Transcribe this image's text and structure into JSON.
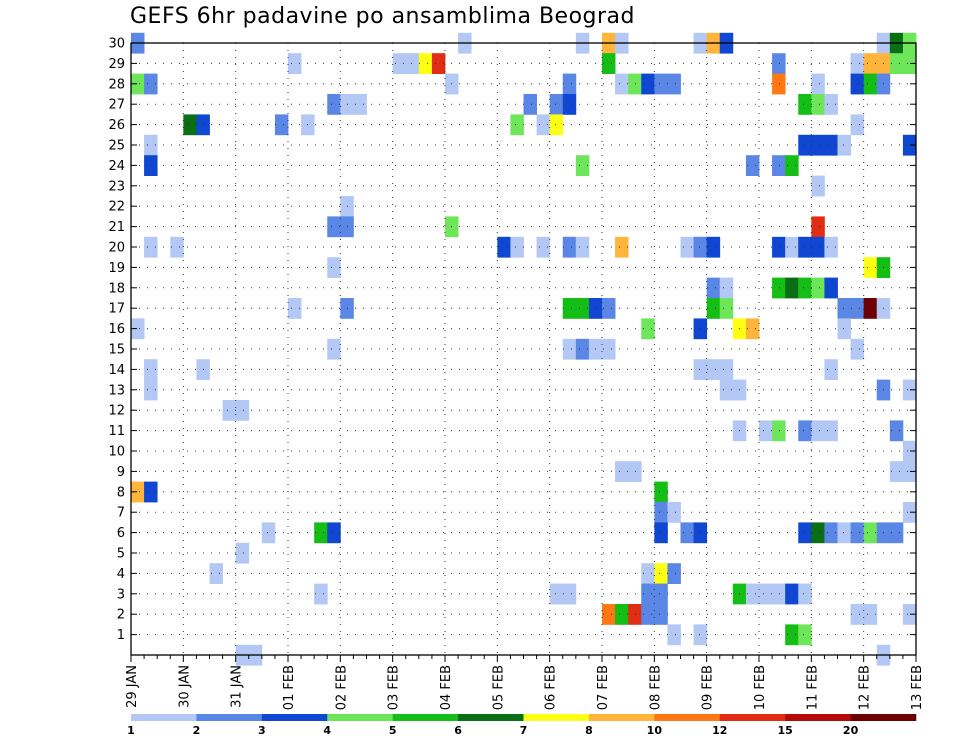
{
  "chart_data": {
    "type": "heatmap",
    "title": "GEFS 6hr padavine po ansamblima Beograd",
    "xlabel": "",
    "ylabel": "",
    "x_ticks": [
      "29 JAN",
      "30 JAN",
      "31 JAN",
      "01 FEB",
      "02 FEB",
      "03 FEB",
      "04 FEB",
      "05 FEB",
      "06 FEB",
      "07 FEB",
      "08 FEB",
      "09 FEB",
      "10 FEB",
      "11 FEB",
      "12 FEB",
      "13 FEB"
    ],
    "y_range": [
      0,
      30
    ],
    "y_ticks": [
      1,
      2,
      3,
      4,
      5,
      6,
      7,
      8,
      9,
      10,
      11,
      12,
      13,
      14,
      15,
      16,
      17,
      18,
      19,
      20,
      21,
      22,
      23,
      24,
      25,
      26,
      27,
      28,
      29,
      30
    ],
    "n_time_steps": 60,
    "grid": "dotted",
    "colorbar": {
      "labels": [
        "1",
        "2",
        "3",
        "4",
        "5",
        "6",
        "7",
        "8",
        "10",
        "12",
        "15",
        "20"
      ],
      "colors": [
        "#b4c8f5",
        "#5a87e6",
        "#0f46d2",
        "#6ee65a",
        "#14be14",
        "#0a6e14",
        "#ffff14",
        "#ffb43c",
        "#ff7814",
        "#e12d14",
        "#b40a0a",
        "#6e0000"
      ]
    },
    "cells": [
      [
        1,
        30,
        2
      ],
      [
        26,
        30,
        1
      ],
      [
        35,
        30,
        1
      ],
      [
        37,
        30,
        8
      ],
      [
        38,
        30,
        1
      ],
      [
        44,
        30,
        1
      ],
      [
        45,
        30,
        8
      ],
      [
        46,
        30,
        3
      ],
      [
        58,
        30,
        1
      ],
      [
        59,
        30,
        6
      ],
      [
        60,
        30,
        4
      ],
      [
        13,
        29,
        1
      ],
      [
        21,
        29,
        1
      ],
      [
        22,
        29,
        1
      ],
      [
        23,
        29,
        7
      ],
      [
        24,
        29,
        10
      ],
      [
        37,
        29,
        5
      ],
      [
        50,
        29,
        2
      ],
      [
        56,
        29,
        1
      ],
      [
        57,
        29,
        8
      ],
      [
        58,
        29,
        8
      ],
      [
        59,
        29,
        4
      ],
      [
        60,
        29,
        4
      ],
      [
        1,
        28,
        4
      ],
      [
        2,
        28,
        2
      ],
      [
        25,
        28,
        1
      ],
      [
        34,
        28,
        2
      ],
      [
        38,
        28,
        1
      ],
      [
        39,
        28,
        4
      ],
      [
        40,
        28,
        3
      ],
      [
        41,
        28,
        2
      ],
      [
        42,
        28,
        2
      ],
      [
        50,
        28,
        9
      ],
      [
        53,
        28,
        1
      ],
      [
        56,
        28,
        3
      ],
      [
        57,
        28,
        5
      ],
      [
        58,
        28,
        2
      ],
      [
        16,
        27,
        2
      ],
      [
        17,
        27,
        1
      ],
      [
        18,
        27,
        1
      ],
      [
        31,
        27,
        2
      ],
      [
        33,
        27,
        2
      ],
      [
        34,
        27,
        3
      ],
      [
        52,
        27,
        5
      ],
      [
        53,
        27,
        4
      ],
      [
        54,
        27,
        1
      ],
      [
        5,
        26,
        6
      ],
      [
        6,
        26,
        3
      ],
      [
        12,
        26,
        2
      ],
      [
        14,
        26,
        1
      ],
      [
        30,
        26,
        4
      ],
      [
        32,
        26,
        1
      ],
      [
        33,
        26,
        7
      ],
      [
        56,
        26,
        1
      ],
      [
        2,
        25,
        1
      ],
      [
        52,
        25,
        3
      ],
      [
        53,
        25,
        3
      ],
      [
        54,
        25,
        3
      ],
      [
        55,
        25,
        1
      ],
      [
        60,
        25,
        3
      ],
      [
        2,
        24,
        3
      ],
      [
        35,
        24,
        4
      ],
      [
        48,
        24,
        2
      ],
      [
        50,
        24,
        2
      ],
      [
        51,
        24,
        5
      ],
      [
        53,
        23,
        1
      ],
      [
        17,
        22,
        1
      ],
      [
        16,
        21,
        2
      ],
      [
        17,
        21,
        2
      ],
      [
        25,
        21,
        4
      ],
      [
        53,
        21,
        10
      ],
      [
        2,
        20,
        1
      ],
      [
        4,
        20,
        1
      ],
      [
        29,
        20,
        3
      ],
      [
        30,
        20,
        1
      ],
      [
        32,
        20,
        1
      ],
      [
        34,
        20,
        2
      ],
      [
        35,
        20,
        1
      ],
      [
        38,
        20,
        8
      ],
      [
        43,
        20,
        1
      ],
      [
        44,
        20,
        2
      ],
      [
        45,
        20,
        3
      ],
      [
        50,
        20,
        3
      ],
      [
        51,
        20,
        1
      ],
      [
        52,
        20,
        3
      ],
      [
        53,
        20,
        3
      ],
      [
        54,
        20,
        1
      ],
      [
        16,
        19,
        1
      ],
      [
        57,
        19,
        7
      ],
      [
        58,
        19,
        5
      ],
      [
        45,
        18,
        2
      ],
      [
        46,
        18,
        1
      ],
      [
        50,
        18,
        5
      ],
      [
        51,
        18,
        6
      ],
      [
        52,
        18,
        5
      ],
      [
        53,
        18,
        4
      ],
      [
        54,
        18,
        3
      ],
      [
        17,
        17,
        2
      ],
      [
        13,
        17,
        1
      ],
      [
        34,
        17,
        5
      ],
      [
        35,
        17,
        5
      ],
      [
        36,
        17,
        3
      ],
      [
        37,
        17,
        2
      ],
      [
        45,
        17,
        5
      ],
      [
        46,
        17,
        4
      ],
      [
        55,
        17,
        2
      ],
      [
        56,
        17,
        2
      ],
      [
        57,
        17,
        12
      ],
      [
        58,
        17,
        1
      ],
      [
        1,
        16,
        1
      ],
      [
        40,
        16,
        4
      ],
      [
        44,
        16,
        3
      ],
      [
        47,
        16,
        7
      ],
      [
        48,
        16,
        8
      ],
      [
        55,
        16,
        1
      ],
      [
        16,
        15,
        1
      ],
      [
        34,
        15,
        1
      ],
      [
        35,
        15,
        2
      ],
      [
        36,
        15,
        1
      ],
      [
        37,
        15,
        1
      ],
      [
        56,
        15,
        1
      ],
      [
        2,
        14,
        1
      ],
      [
        6,
        14,
        1
      ],
      [
        44,
        14,
        1
      ],
      [
        45,
        14,
        1
      ],
      [
        46,
        14,
        1
      ],
      [
        54,
        14,
        1
      ],
      [
        2,
        13,
        1
      ],
      [
        46,
        13,
        1
      ],
      [
        47,
        13,
        1
      ],
      [
        58,
        13,
        2
      ],
      [
        60,
        13,
        1
      ],
      [
        8,
        12,
        1
      ],
      [
        9,
        12,
        1
      ],
      [
        47,
        11,
        1
      ],
      [
        49,
        11,
        1
      ],
      [
        50,
        11,
        4
      ],
      [
        52,
        11,
        2
      ],
      [
        53,
        11,
        1
      ],
      [
        54,
        11,
        1
      ],
      [
        59,
        11,
        2
      ],
      [
        60,
        10,
        1
      ],
      [
        38,
        9,
        1
      ],
      [
        39,
        9,
        1
      ],
      [
        59,
        9,
        1
      ],
      [
        60,
        9,
        1
      ],
      [
        1,
        8,
        8
      ],
      [
        2,
        8,
        3
      ],
      [
        41,
        8,
        5
      ],
      [
        41,
        7,
        2
      ],
      [
        42,
        7,
        1
      ],
      [
        60,
        7,
        1
      ],
      [
        11,
        6,
        1
      ],
      [
        15,
        6,
        5
      ],
      [
        16,
        6,
        3
      ],
      [
        41,
        6,
        3
      ],
      [
        43,
        6,
        2
      ],
      [
        44,
        6,
        3
      ],
      [
        52,
        6,
        3
      ],
      [
        53,
        6,
        6
      ],
      [
        54,
        6,
        2
      ],
      [
        55,
        6,
        1
      ],
      [
        56,
        6,
        2
      ],
      [
        57,
        6,
        4
      ],
      [
        58,
        6,
        2
      ],
      [
        59,
        6,
        2
      ],
      [
        9,
        5,
        1
      ],
      [
        7,
        4,
        1
      ],
      [
        40,
        4,
        1
      ],
      [
        41,
        4,
        7
      ],
      [
        42,
        4,
        2
      ],
      [
        15,
        3,
        1
      ],
      [
        33,
        3,
        1
      ],
      [
        34,
        3,
        1
      ],
      [
        40,
        3,
        2
      ],
      [
        41,
        3,
        2
      ],
      [
        47,
        3,
        5
      ],
      [
        48,
        3,
        1
      ],
      [
        49,
        3,
        1
      ],
      [
        50,
        3,
        1
      ],
      [
        51,
        3,
        3
      ],
      [
        52,
        3,
        1
      ],
      [
        37,
        2,
        9
      ],
      [
        38,
        2,
        5
      ],
      [
        39,
        2,
        10
      ],
      [
        40,
        2,
        2
      ],
      [
        41,
        2,
        2
      ],
      [
        56,
        2,
        1
      ],
      [
        57,
        2,
        1
      ],
      [
        60,
        2,
        1
      ],
      [
        42,
        1,
        1
      ],
      [
        44,
        1,
        1
      ],
      [
        51,
        1,
        5
      ],
      [
        52,
        1,
        4
      ],
      [
        9,
        0,
        1
      ],
      [
        10,
        0,
        1
      ],
      [
        58,
        0,
        1
      ]
    ]
  }
}
